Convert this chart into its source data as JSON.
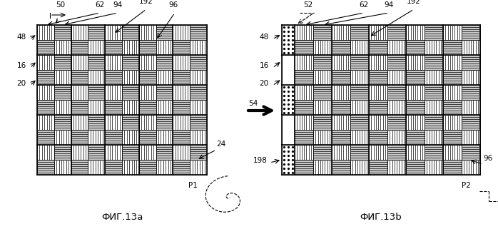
{
  "fig_width": 6.98,
  "fig_height": 3.21,
  "dpi": 100,
  "background": "#ffffff",
  "fig1_label": "ФИГ.13a",
  "fig2_label": "ФИГ.13b"
}
